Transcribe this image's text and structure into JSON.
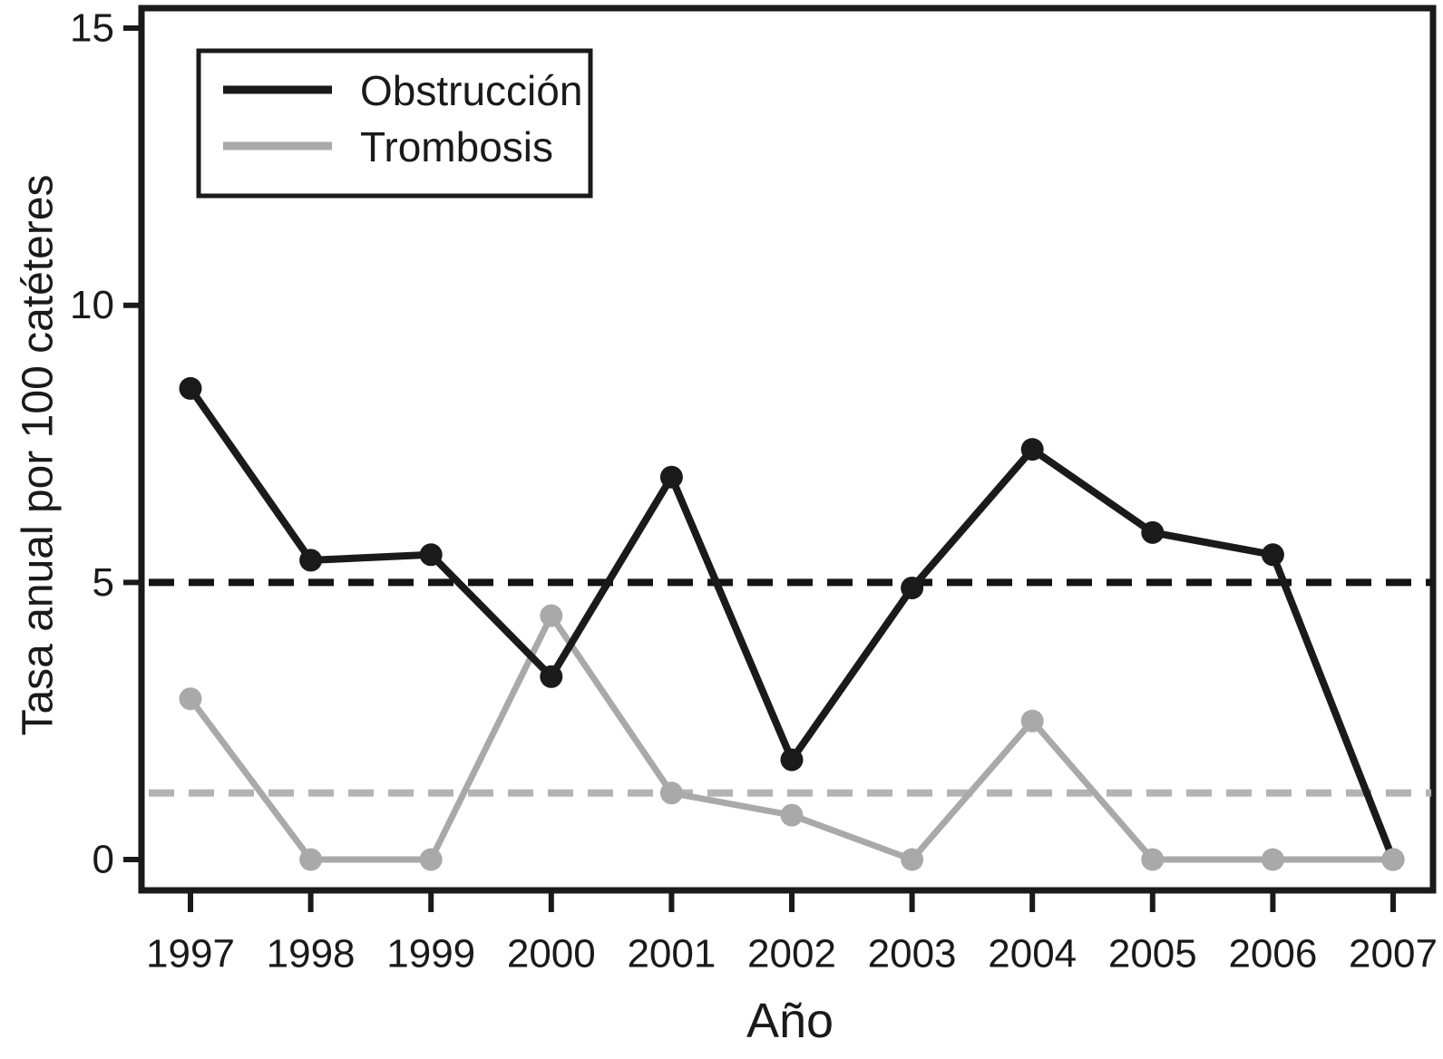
{
  "figure": {
    "background": "#ffffff",
    "frame_color": "#1a1a1a"
  },
  "chart_data": {
    "type": "line",
    "x": [
      1997,
      1998,
      1999,
      2000,
      2001,
      2002,
      2003,
      2004,
      2005,
      2006,
      2007
    ],
    "series": [
      {
        "name": "Obstrucción",
        "color": "#1a1a1a",
        "marker": "circle",
        "values": [
          8.5,
          5.4,
          5.5,
          3.3,
          6.9,
          1.8,
          4.9,
          7.4,
          5.9,
          5.5,
          0
        ]
      },
      {
        "name": "Trombosis",
        "color": "#a9a9a9",
        "marker": "circle",
        "values": [
          2.9,
          0,
          0,
          4.4,
          1.2,
          0.8,
          0,
          2.5,
          0,
          0,
          0
        ]
      }
    ],
    "reference_lines": [
      {
        "name": "obstruccion-mean",
        "value": 5.0,
        "color": "#141414",
        "style": "dashed"
      },
      {
        "name": "trombosis-mean",
        "value": 1.2,
        "color": "#b3b3b3",
        "style": "dashed"
      }
    ],
    "xlabel": "Año",
    "ylabel": "Tasa anual por 100 catéteres",
    "y_ticks": [
      0,
      5,
      10,
      15
    ],
    "ylim": [
      0,
      15
    ],
    "grid": false,
    "legend_position": "top-left"
  }
}
